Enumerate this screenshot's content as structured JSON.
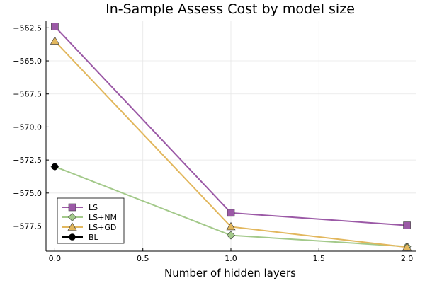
{
  "chart_data": {
    "type": "line",
    "title": "In-Sample Assess Cost by model size",
    "xlabel": "Number of hidden layers",
    "ylabel": "",
    "xlim": [
      -0.05,
      2.05
    ],
    "ylim": [
      -579.4,
      -562.0
    ],
    "xticks": [
      0.0,
      0.5,
      1.0,
      1.5,
      2.0
    ],
    "xtick_labels": [
      "0.0",
      "0.5",
      "1.0",
      "1.5",
      "2.0"
    ],
    "yticks": [
      -562.5,
      -565.0,
      -567.5,
      -570.0,
      -572.5,
      -575.0,
      -577.5
    ],
    "ytick_labels": [
      "−562.5",
      "−565.0",
      "−567.5",
      "−570.0",
      "−572.5",
      "−575.0",
      "−577.5"
    ],
    "grid": true,
    "legend_position": "bottom-left",
    "series": [
      {
        "name": "LS",
        "color": "#9b59a6",
        "marker": "square",
        "x": [
          0,
          1,
          2
        ],
        "y": [
          -562.4,
          -576.5,
          -577.45
        ]
      },
      {
        "name": "LS+NM",
        "color": "#a3c98a",
        "marker": "diamond",
        "x": [
          0,
          1,
          2
        ],
        "y": [
          -573.0,
          -578.2,
          -579.05
        ]
      },
      {
        "name": "LS+GD",
        "color": "#e2b75d",
        "marker": "triangle",
        "x": [
          0,
          1,
          2
        ],
        "y": [
          -563.5,
          -577.55,
          -579.1
        ]
      },
      {
        "name": "BL",
        "color": "#000000",
        "marker": "circle",
        "x": [
          0
        ],
        "y": [
          -573.0
        ]
      }
    ]
  }
}
